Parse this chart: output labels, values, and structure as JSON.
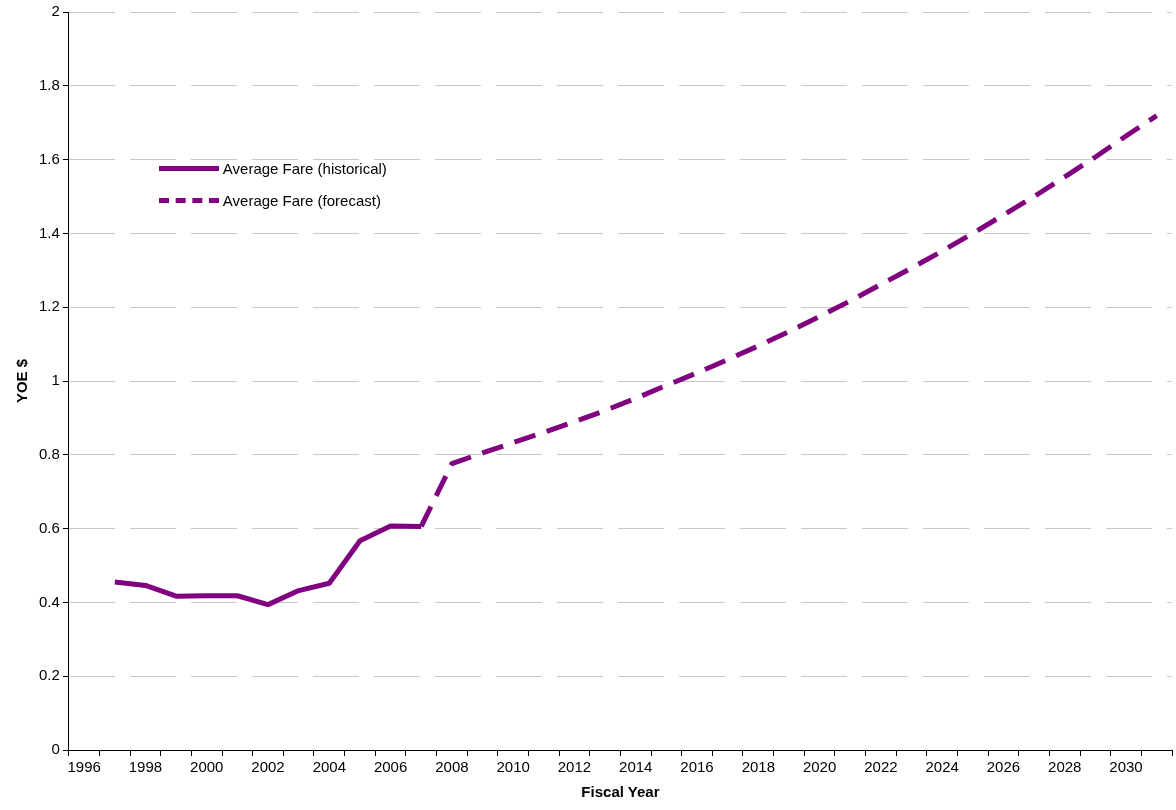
{
  "chart_data": {
    "type": "line",
    "xlabel": "Fiscal Year",
    "ylabel": "YOE $",
    "categories": [
      "1996",
      null,
      "1998",
      null,
      "2000",
      null,
      "2002",
      null,
      "2004",
      null,
      "2006",
      null,
      "2008",
      null,
      "2010",
      null,
      "2012",
      null,
      "2014",
      null,
      "2016",
      null,
      "2018",
      null,
      "2020",
      null,
      "2022",
      null,
      "2024",
      null,
      "2026",
      null,
      "2028",
      null,
      "2030",
      null
    ],
    "series": [
      {
        "name": "Average Fare (historical)",
        "color": "#800080",
        "line_style": "solid",
        "values": [
          null,
          0.455,
          0.446,
          0.417,
          0.418,
          0.418,
          0.394,
          0.432,
          0.452,
          0.567,
          0.607,
          0.606,
          null,
          null,
          null,
          null,
          null,
          null,
          null,
          null,
          null,
          null,
          null,
          null,
          null,
          null,
          null,
          null,
          null,
          null,
          null,
          null,
          null,
          null,
          null,
          null
        ]
      },
      {
        "name": "Average Fare (forecast)",
        "color": "#800080",
        "line_style": "dashed",
        "values": [
          null,
          null,
          null,
          null,
          null,
          null,
          null,
          null,
          null,
          null,
          null,
          0.606,
          0.776,
          0.805,
          0.833,
          0.861,
          0.89,
          0.92,
          0.953,
          0.988,
          1.022,
          1.058,
          1.095,
          1.134,
          1.175,
          1.217,
          1.262,
          1.306,
          1.352,
          1.4,
          1.45,
          1.5,
          1.553,
          1.607,
          1.664,
          1.719
        ]
      }
    ],
    "ylim": [
      0,
      2
    ],
    "yticks": [
      0,
      0.2,
      0.4,
      0.6,
      0.8,
      1,
      1.2,
      1.4,
      1.6,
      1.8,
      2
    ],
    "grid": "y",
    "legend": "top left",
    "marker": "none"
  }
}
